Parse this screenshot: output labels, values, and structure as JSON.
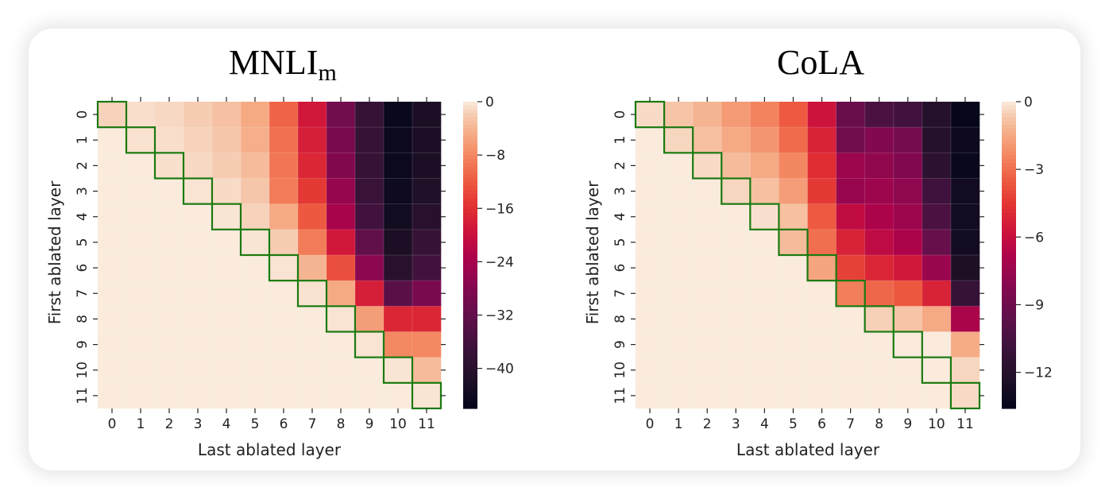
{
  "figure": {
    "diagonal_outline_color": "#1b7a10",
    "colormap": "rocket"
  },
  "chart_data": [
    {
      "type": "heatmap",
      "title": "MNLI",
      "title_subscript": "m",
      "xlabel": "Last ablated layer",
      "ylabel": "First ablated layer",
      "x_ticks": [
        "0",
        "1",
        "2",
        "3",
        "4",
        "5",
        "6",
        "7",
        "8",
        "9",
        "10",
        "11"
      ],
      "y_ticks": [
        "0",
        "1",
        "2",
        "3",
        "4",
        "5",
        "6",
        "7",
        "8",
        "9",
        "10",
        "11"
      ],
      "colorbar": {
        "vmin": -46,
        "vmax": 0,
        "ticks": [
          "0",
          "−8",
          "−16",
          "−24",
          "−32",
          "−40"
        ],
        "tick_values": [
          0,
          -8,
          -16,
          -24,
          -32,
          -40
        ]
      },
      "highlight": "diagonal",
      "values": [
        [
          -1.5,
          -0.8,
          -1.2,
          -2.0,
          -3.0,
          -5.0,
          -11.0,
          -19.0,
          -30.0,
          -38.0,
          -45.0,
          -42.0
        ],
        [
          0,
          -0.6,
          -0.8,
          -1.5,
          -2.5,
          -4.5,
          -10.0,
          -18.0,
          -29.0,
          -38.0,
          -44.5,
          -42.0
        ],
        [
          0,
          0,
          -0.7,
          -1.2,
          -2.0,
          -3.5,
          -9.5,
          -17.0,
          -28.0,
          -38.0,
          -44.5,
          -42.0
        ],
        [
          0,
          0,
          0,
          -0.5,
          -1.0,
          -2.5,
          -9.0,
          -15.0,
          -26.0,
          -37.5,
          -44.0,
          -41.5
        ],
        [
          0,
          0,
          0,
          0,
          -0.4,
          -1.5,
          -5.0,
          -12.0,
          -24.0,
          -36.0,
          -43.5,
          -40.0
        ],
        [
          0,
          0,
          0,
          0,
          0,
          -0.4,
          -2.0,
          -9.0,
          -19.0,
          -32.0,
          -42.0,
          -38.0
        ],
        [
          0,
          0,
          0,
          0,
          0,
          0,
          -0.5,
          -4.0,
          -13.0,
          -27.0,
          -40.0,
          -36.0
        ],
        [
          0,
          0,
          0,
          0,
          0,
          0,
          0,
          -0.6,
          -5.0,
          -18.0,
          -33.0,
          -29.0
        ],
        [
          0,
          0,
          0,
          0,
          0,
          0,
          0,
          0,
          -0.5,
          -6.0,
          -17.0,
          -17.0
        ],
        [
          0,
          0,
          0,
          0,
          0,
          0,
          0,
          0,
          0,
          -0.5,
          -8.0,
          -8.0
        ],
        [
          0,
          0,
          0,
          0,
          0,
          0,
          0,
          0,
          0,
          0,
          -0.4,
          -3.5
        ],
        [
          0,
          0,
          0,
          0,
          0,
          0,
          0,
          0,
          0,
          0,
          0,
          -0.4
        ]
      ]
    },
    {
      "type": "heatmap",
      "title": "CoLA",
      "title_subscript": "",
      "xlabel": "Last ablated layer",
      "ylabel": "First ablated layer",
      "x_ticks": [
        "0",
        "1",
        "2",
        "3",
        "4",
        "5",
        "6",
        "7",
        "8",
        "9",
        "10",
        "11"
      ],
      "y_ticks": [
        "0",
        "1",
        "2",
        "3",
        "4",
        "5",
        "6",
        "7",
        "8",
        "9",
        "10",
        "11"
      ],
      "colorbar": {
        "vmin": -13.6,
        "vmax": 0,
        "ticks": [
          "0",
          "−3",
          "−6",
          "−9",
          "−12"
        ],
        "tick_values": [
          0,
          -3,
          -6,
          -9,
          -12
        ]
      },
      "highlight": "diagonal",
      "values": [
        [
          -0.3,
          -0.8,
          -1.2,
          -1.9,
          -2.5,
          -3.5,
          -5.8,
          -9.2,
          -10.3,
          -10.7,
          -12.0,
          -13.4
        ],
        [
          0,
          -0.4,
          -0.9,
          -1.5,
          -2.0,
          -3.1,
          -5.2,
          -8.9,
          -8.3,
          -8.8,
          -12.0,
          -13.1
        ],
        [
          0,
          0,
          -0.3,
          -1.0,
          -1.5,
          -2.4,
          -4.8,
          -7.4,
          -7.8,
          -8.3,
          -11.6,
          -13.3
        ],
        [
          0,
          0,
          0,
          -0.4,
          -0.9,
          -1.8,
          -4.4,
          -7.6,
          -7.4,
          -7.9,
          -10.8,
          -12.9
        ],
        [
          0,
          0,
          0,
          0,
          -0.2,
          -0.9,
          -3.5,
          -6.2,
          -6.9,
          -7.4,
          -10.3,
          -12.9
        ],
        [
          0,
          0,
          0,
          0,
          0,
          -1.0,
          -3.0,
          -5.2,
          -6.3,
          -6.9,
          -9.3,
          -12.9
        ],
        [
          0,
          0,
          0,
          0,
          0,
          0,
          -1.6,
          -4.2,
          -5.1,
          -5.6,
          -7.5,
          -12.4
        ],
        [
          0,
          0,
          0,
          0,
          0,
          0,
          0,
          -2.6,
          -3.2,
          -3.6,
          -5.2,
          -11.1
        ],
        [
          0,
          0,
          0,
          0,
          0,
          0,
          0,
          0,
          -0.5,
          -0.8,
          -1.5,
          -7.0
        ],
        [
          0,
          0,
          0,
          0,
          0,
          0,
          0,
          0,
          0,
          0,
          0,
          -1.4
        ],
        [
          0,
          0,
          0,
          0,
          0,
          0,
          0,
          0,
          0,
          0,
          0,
          -0.4
        ],
        [
          0,
          0,
          0,
          0,
          0,
          0,
          0,
          0,
          0,
          0,
          0,
          -0.3
        ]
      ]
    }
  ]
}
